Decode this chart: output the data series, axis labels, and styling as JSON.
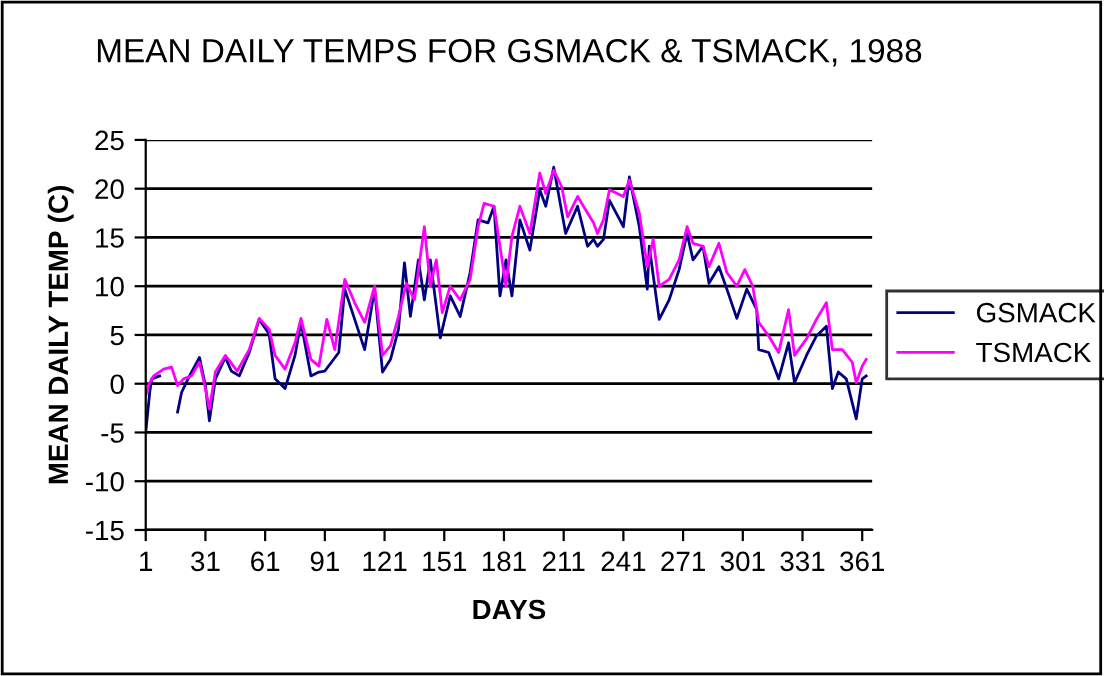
{
  "chart_data": {
    "type": "line",
    "title": "MEAN DAILY TEMPS FOR GSMACK & TSMACK, 1988",
    "xlabel": "DAYS",
    "ylabel": "MEAN DAILY TEMP (C)",
    "xlim": [
      1,
      366
    ],
    "xticks": [
      1,
      31,
      61,
      91,
      121,
      151,
      181,
      211,
      241,
      271,
      301,
      331,
      361
    ],
    "ylim": [
      -15,
      25
    ],
    "yticks": [
      -15,
      -10,
      -5,
      0,
      5,
      10,
      15,
      20,
      25
    ],
    "grid": "y",
    "legend": "right",
    "line_style": "solid",
    "marker": "none",
    "series": [
      {
        "name": "GSMACK",
        "color": "#000080",
        "x": [
          1,
          3,
          4,
          8,
          12,
          17,
          19,
          23,
          28,
          31,
          33,
          36,
          41,
          44,
          48,
          53,
          58,
          63,
          66,
          71,
          76,
          79,
          84,
          88,
          91,
          98,
          101,
          106,
          111,
          116,
          120,
          124,
          128,
          131,
          134,
          138,
          141,
          144,
          149,
          154,
          159,
          164,
          168,
          173,
          176,
          179,
          182,
          185,
          189,
          194,
          199,
          202,
          206,
          209,
          212,
          218,
          223,
          226,
          228,
          231,
          234,
          241,
          244,
          249,
          253,
          254,
          259,
          264,
          269,
          273,
          276,
          281,
          284,
          289,
          293,
          298,
          303,
          308,
          309,
          314,
          319,
          324,
          327,
          333,
          338,
          343,
          346,
          349,
          353,
          358,
          361,
          363
        ],
        "values": [
          -5,
          -0.9,
          0.5,
          0.8,
          null,
          -2.9,
          -0.9,
          0.8,
          2.7,
          -0.2,
          -3.8,
          0.5,
          2.7,
          1.3,
          0.8,
          3.2,
          6.6,
          5.1,
          0.5,
          -0.5,
          2.9,
          6.3,
          0.8,
          1.2,
          1.3,
          3.2,
          9.7,
          6.6,
          3.5,
          9.7,
          1.2,
          2.5,
          5.6,
          12.4,
          6.9,
          12.7,
          8.6,
          12.7,
          4.7,
          9,
          6.9,
          11.4,
          16.8,
          16.5,
          18.2,
          9,
          12.7,
          9,
          16.8,
          13.7,
          19.9,
          18.2,
          22.2,
          18.8,
          15.4,
          18.2,
          14.1,
          14.8,
          14.1,
          14.8,
          18.8,
          16.1,
          21.2,
          16.1,
          9.7,
          14.1,
          6.6,
          8.6,
          11.7,
          15.4,
          12.7,
          14.1,
          10.3,
          12,
          9.7,
          6.7,
          9.7,
          7.6,
          3.5,
          3.2,
          0.5,
          4.2,
          0.1,
          2.9,
          4.9,
          5.9,
          -0.5,
          1.2,
          0.5,
          -3.6,
          0.5,
          0.8
        ]
      },
      {
        "name": "TSMACK",
        "color": "#ff00ff",
        "x": [
          1,
          3,
          5,
          10,
          14,
          17,
          20,
          24,
          28,
          31,
          33,
          36,
          41,
          47,
          53,
          58,
          63,
          66,
          71,
          76,
          79,
          84,
          88,
          92,
          96,
          101,
          106,
          111,
          116,
          120,
          124,
          128,
          132,
          136,
          141,
          144,
          147,
          150,
          154,
          159,
          164,
          168,
          171,
          176,
          179,
          182,
          185,
          189,
          194,
          199,
          202,
          206,
          210,
          213,
          218,
          223,
          226,
          228,
          231,
          234,
          241,
          244,
          249,
          253,
          256,
          259,
          264,
          269,
          273,
          276,
          281,
          284,
          289,
          293,
          298,
          302,
          306,
          309,
          314,
          319,
          324,
          327,
          333,
          338,
          343,
          346,
          351,
          356,
          358,
          361,
          363
        ],
        "values": [
          -1.2,
          0.1,
          0.8,
          1.5,
          1.7,
          -0.2,
          0.5,
          0.8,
          2.2,
          -0.5,
          -2.6,
          1.2,
          2.9,
          1.3,
          3.5,
          6.7,
          5.6,
          2.9,
          1.5,
          4.2,
          6.7,
          2.5,
          1.8,
          6.6,
          3.5,
          10.7,
          8.3,
          6.3,
          10,
          2.9,
          3.9,
          6.9,
          10.3,
          8.6,
          16.1,
          10,
          12.7,
          7.3,
          10,
          8.6,
          10.7,
          16.1,
          18.5,
          18.2,
          14.1,
          10,
          15.1,
          18.2,
          15.4,
          21.6,
          19.5,
          21.9,
          20.2,
          17.1,
          19.2,
          17.5,
          16.5,
          15.4,
          16.8,
          19.9,
          19.2,
          20.9,
          17.5,
          12,
          14.8,
          10,
          10.7,
          12.7,
          16.1,
          14.4,
          14.1,
          12,
          14.4,
          11.4,
          10,
          11.7,
          10,
          6.3,
          4.9,
          3.2,
          7.6,
          2.9,
          4.6,
          6.6,
          8.3,
          3.5,
          3.5,
          2.2,
          0.1,
          1.8,
          2.5
        ]
      }
    ]
  }
}
